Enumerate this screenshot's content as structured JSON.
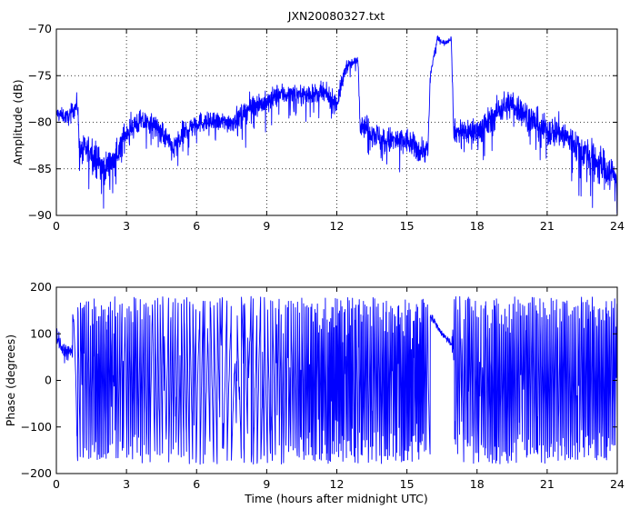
{
  "chart_data": [
    {
      "type": "line",
      "title": "JXN20080327.txt",
      "xlabel": "",
      "ylabel": "Amplitude (dB)",
      "xlim": [
        0,
        24
      ],
      "ylim": [
        -90,
        -70
      ],
      "xticks": [
        0,
        3,
        6,
        9,
        12,
        15,
        18,
        21,
        24
      ],
      "yticks": [
        -90,
        -85,
        -80,
        -75,
        -70
      ],
      "xtick_labels": [
        "0",
        "3",
        "6",
        "9",
        "12",
        "15",
        "18",
        "21",
        "24"
      ],
      "ytick_labels": [
        "−90",
        "−85",
        "−80",
        "−75",
        "−70"
      ],
      "grid": true,
      "color": "#0000ff",
      "series": [
        {
          "x": [
            0,
            0.5,
            0.9,
            1.0,
            1.5,
            2.0,
            2.5,
            3.0,
            3.5,
            4.0,
            4.5,
            5.0,
            5.5,
            6.0,
            6.5,
            7.0,
            7.5,
            8.0,
            8.5,
            9.0,
            9.5,
            10.0,
            10.5,
            11.0,
            11.5,
            12.0,
            12.4,
            12.8,
            12.9,
            13.0,
            13.5,
            14.0,
            14.5,
            15.0,
            15.5,
            15.9,
            16.0,
            16.3,
            16.6,
            16.9,
            17.0,
            17.5,
            18.0,
            18.5,
            19.0,
            19.5,
            20.0,
            20.5,
            21.0,
            21.5,
            22.0,
            22.5,
            23.0,
            23.5,
            24.0
          ],
          "y": [
            -79,
            -79.5,
            -78,
            -83,
            -83,
            -85,
            -84,
            -81,
            -80,
            -80,
            -81,
            -83,
            -81,
            -80,
            -80,
            -80,
            -80,
            -79,
            -78,
            -78,
            -77,
            -77,
            -77,
            -77,
            -77,
            -78,
            -74,
            -73.5,
            -73,
            -80,
            -81,
            -82,
            -82,
            -82,
            -83,
            -83,
            -75,
            -71,
            -71.5,
            -71,
            -81,
            -81,
            -81,
            -80,
            -78.5,
            -78,
            -79,
            -80,
            -81,
            -81,
            -82,
            -83,
            -84,
            -85,
            -86
          ],
          "spread": [
            0.7,
            0.9,
            1.2,
            1.6,
            1.8,
            1.8,
            1.6,
            1.5,
            1.4,
            1.2,
            1.3,
            1.5,
            1.4,
            1.2,
            1.1,
            1.1,
            1.2,
            1.3,
            1.4,
            1.3,
            1.3,
            1.2,
            1.1,
            1.1,
            1.2,
            1.2,
            0.8,
            0.5,
            0.5,
            1.2,
            1.5,
            1.6,
            1.6,
            1.5,
            1.5,
            1.4,
            0.6,
            0.3,
            0.3,
            0.3,
            1.3,
            1.6,
            1.7,
            1.7,
            1.8,
            1.7,
            1.7,
            1.7,
            1.8,
            1.9,
            2.0,
            2.0,
            2.1,
            2.2,
            2.2
          ]
        }
      ]
    },
    {
      "type": "line",
      "title": "",
      "xlabel": "Time (hours after midnight UTC)",
      "ylabel": "Phase (degrees)",
      "xlim": [
        0,
        24
      ],
      "ylim": [
        -200,
        200
      ],
      "xticks": [
        0,
        3,
        6,
        9,
        12,
        15,
        18,
        21,
        24
      ],
      "yticks": [
        -200,
        -100,
        0,
        100,
        200
      ],
      "xtick_labels": [
        "0",
        "3",
        "6",
        "9",
        "12",
        "15",
        "18",
        "21",
        "24"
      ],
      "ytick_labels": [
        "−200",
        "−100",
        "0",
        "100",
        "200"
      ],
      "grid": false,
      "color": "#0000ff",
      "wrap_range": [
        -180,
        180
      ],
      "series": [
        {
          "x": [
            0,
            0.1,
            0.3,
            0.5,
            0.7,
            1.0,
            1.5,
            2.0,
            2.5,
            3.0,
            3.5,
            4.0,
            4.5,
            5.0,
            5.5,
            6.0,
            6.5,
            7.0,
            7.5,
            8.0,
            8.5,
            9.0,
            9.5,
            10.0,
            10.5,
            11.0,
            11.5,
            12.0,
            12.5,
            12.8,
            13.0,
            13.5,
            14.0,
            14.5,
            15.0,
            15.5,
            15.9,
            16.0,
            16.3,
            16.6,
            16.9,
            17.0,
            17.5,
            18.0,
            18.5,
            19.0,
            19.5,
            20.0,
            20.5,
            21.0,
            21.5,
            22.0,
            22.5,
            23.0,
            23.5,
            24.0
          ],
          "rate": [
            0.3,
            0.3,
            0.3,
            0.3,
            0.5,
            2.5,
            3.5,
            4.5,
            4.0,
            3.5,
            4.0,
            3.0,
            2.5,
            3.0,
            2.5,
            2.0,
            2.0,
            1.8,
            1.5,
            1.5,
            1.8,
            2.0,
            2.5,
            3.0,
            3.5,
            4.0,
            4.5,
            6.0,
            5.0,
            3.0,
            3.5,
            4.0,
            4.5,
            5.0,
            5.5,
            6.0,
            4.0,
            0.3,
            0.2,
            0.2,
            0.3,
            2.5,
            3.0,
            3.5,
            4.0,
            4.0,
            4.0,
            4.0,
            4.0,
            4.0,
            4.0,
            4.0,
            4.5,
            4.5,
            4.5,
            4.5
          ],
          "noise": [
            15,
            15,
            15,
            15,
            20,
            40,
            45,
            45,
            45,
            45,
            45,
            40,
            40,
            40,
            40,
            35,
            35,
            35,
            35,
            35,
            35,
            40,
            40,
            45,
            45,
            45,
            45,
            45,
            40,
            30,
            40,
            45,
            45,
            45,
            45,
            45,
            30,
            8,
            6,
            6,
            10,
            40,
            45,
            45,
            45,
            45,
            45,
            45,
            45,
            45,
            45,
            45,
            45,
            45,
            45,
            45
          ],
          "anchors": [
            {
              "x": 0.0,
              "y": 100
            },
            {
              "x": 0.3,
              "y": 60
            },
            {
              "x": 16.0,
              "y": 140
            },
            {
              "x": 16.5,
              "y": 100
            },
            {
              "x": 17.0,
              "y": 75
            }
          ]
        }
      ]
    }
  ]
}
